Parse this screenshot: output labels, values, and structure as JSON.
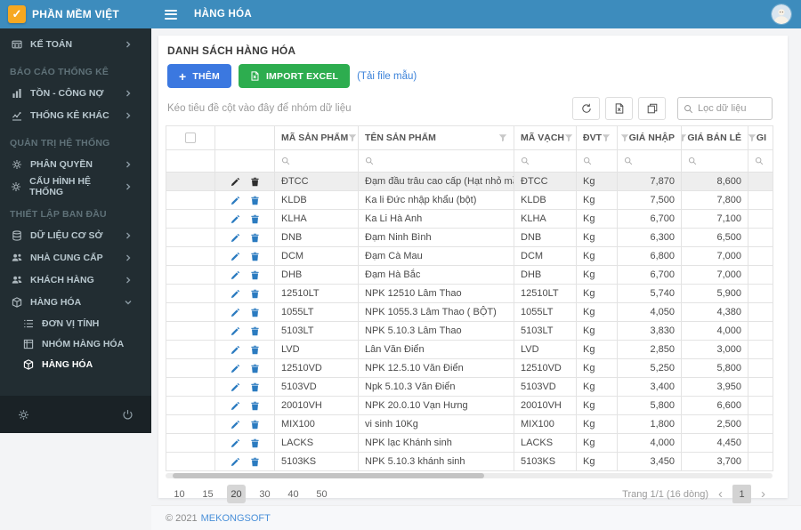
{
  "app": {
    "brand": "PHẦN MỀM VIỆT",
    "topbar_title": "HÀNG HÓA",
    "footer_copyright": "© 2021",
    "footer_brand": "MEKONGSOFT"
  },
  "colors": {
    "topbar_blue": "#3d8cbd",
    "sidebar_dark": "#222d32",
    "logo_orange": "#f6a821",
    "add_button_blue": "#3b78e0",
    "import_button_green": "#2dad4f",
    "action_icon_blue": "#2b7bc0"
  },
  "sidebar": {
    "items": [
      {
        "type": "item",
        "name": "ke-toan",
        "label": "KẾ TOÁN",
        "icon": "accounting-icon",
        "chevron": "right"
      },
      {
        "type": "section",
        "name": "bao-cao-thong-ke",
        "label": "BÁO CÁO THỐNG KÊ"
      },
      {
        "type": "item",
        "name": "ton-cong-no",
        "label": "TỒN - CÔNG NỢ",
        "icon": "bar-chart-icon",
        "chevron": "right"
      },
      {
        "type": "item",
        "name": "thong-ke-khac",
        "label": "THỐNG KÊ KHÁC",
        "icon": "line-chart-icon",
        "chevron": "right"
      },
      {
        "type": "section",
        "name": "quan-tri-he-thong",
        "label": "QUẢN TRỊ HỆ THỐNG"
      },
      {
        "type": "item",
        "name": "phan-quyen",
        "label": "PHÂN QUYỀN",
        "icon": "gears-icon",
        "chevron": "right"
      },
      {
        "type": "item",
        "name": "cau-hinh-he-thong",
        "label": "CẤU HÌNH HỆ THỐNG",
        "icon": "gear-icon",
        "chevron": "right"
      },
      {
        "type": "section",
        "name": "thiet-lap-ban-dau",
        "label": "THIẾT LẬP BAN ĐẦU"
      },
      {
        "type": "item",
        "name": "du-lieu-co-so",
        "label": "DỮ LIỆU CƠ SỞ",
        "icon": "database-icon",
        "chevron": "right"
      },
      {
        "type": "item",
        "name": "nha-cung-cap",
        "label": "NHÀ CUNG CẤP",
        "icon": "users-icon",
        "chevron": "right"
      },
      {
        "type": "item",
        "name": "khach-hang",
        "label": "KHÁCH HÀNG",
        "icon": "users-icon",
        "chevron": "right"
      },
      {
        "type": "item",
        "name": "hang-hoa",
        "label": "HÀNG HÓA",
        "icon": "box-icon",
        "chevron": "down"
      },
      {
        "type": "subitem",
        "name": "don-vi-tinh",
        "label": "ĐƠN VỊ TÍNH",
        "icon": "list-icon"
      },
      {
        "type": "subitem",
        "name": "nhom-hang-hoa",
        "label": "NHÓM HÀNG HÓA",
        "icon": "group-icon"
      },
      {
        "type": "subitem",
        "name": "hang-hoa-active",
        "label": "HÀNG HÓA",
        "icon": "box-icon",
        "active": true
      }
    ]
  },
  "page": {
    "heading": "DANH SÁCH HÀNG HÓA",
    "add_button": "THÊM",
    "import_button": "IMPORT EXCEL",
    "template_link": "(Tải file mẫu)",
    "group_hint": "Kéo tiêu đề cột vào đây để nhóm dữ liệu",
    "search_placeholder": "Lọc dữ liệu"
  },
  "table": {
    "columns": [
      {
        "key": "select",
        "label": "",
        "type": "checkbox"
      },
      {
        "key": "actions",
        "label": "",
        "type": "actions"
      },
      {
        "key": "code",
        "label": "MÃ SẢN PHẨM",
        "filter": true
      },
      {
        "key": "name",
        "label": "TÊN SẢN PHẨM",
        "filter": true
      },
      {
        "key": "barcode",
        "label": "MÃ VẠCH",
        "filter": true
      },
      {
        "key": "unit",
        "label": "ĐVT",
        "filter": true
      },
      {
        "key": "buy",
        "label": "GIÁ NHẬP",
        "filter": true,
        "align": "right"
      },
      {
        "key": "retail",
        "label": "GIÁ BÁN LẺ",
        "filter": true,
        "align": "right"
      },
      {
        "key": "cut",
        "label": "GI",
        "filter": true,
        "align": "right"
      }
    ],
    "rows": [
      {
        "selected": true,
        "cells": [
          "ĐTCC",
          "Đạm đầu trâu cao cấp (Hạt nhỏ mầu xanh)",
          "ĐTCC",
          "Kg",
          "7,870",
          "8,600",
          ""
        ]
      },
      {
        "selected": false,
        "cells": [
          "KLDB",
          "Ka li Đức nhập khẩu (bột)",
          "KLDB",
          "Kg",
          "7,500",
          "7,800",
          ""
        ]
      },
      {
        "selected": false,
        "cells": [
          "KLHA",
          "Ka Li Hà Anh",
          "KLHA",
          "Kg",
          "6,700",
          "7,100",
          ""
        ]
      },
      {
        "selected": false,
        "cells": [
          "DNB",
          "Đạm Ninh Bình",
          "DNB",
          "Kg",
          "6,300",
          "6,500",
          ""
        ]
      },
      {
        "selected": false,
        "cells": [
          "DCM",
          "Đạm Cà Mau",
          "DCM",
          "Kg",
          "6,800",
          "7,000",
          ""
        ]
      },
      {
        "selected": false,
        "cells": [
          "DHB",
          "Đạm Hà Bắc",
          "DHB",
          "Kg",
          "6,700",
          "7,000",
          ""
        ]
      },
      {
        "selected": false,
        "cells": [
          "12510LT",
          "NPK 12510 Lâm Thao",
          "12510LT",
          "Kg",
          "5,740",
          "5,900",
          ""
        ]
      },
      {
        "selected": false,
        "cells": [
          "1055LT",
          "NPK 1055.3 Lâm Thao ( BỘT)",
          "1055LT",
          "Kg",
          "4,050",
          "4,380",
          ""
        ]
      },
      {
        "selected": false,
        "cells": [
          "5103LT",
          "NPK 5.10.3 Lâm Thao",
          "5103LT",
          "Kg",
          "3,830",
          "4,000",
          ""
        ]
      },
      {
        "selected": false,
        "cells": [
          "LVD",
          "Lân Văn Điển",
          "LVD",
          "Kg",
          "2,850",
          "3,000",
          ""
        ]
      },
      {
        "selected": false,
        "cells": [
          "12510VD",
          "NPK 12.5.10 Văn Điển",
          "12510VD",
          "Kg",
          "5,250",
          "5,800",
          ""
        ]
      },
      {
        "selected": false,
        "cells": [
          "5103VD",
          "Npk 5.10.3 Văn Điển",
          "5103VD",
          "Kg",
          "3,400",
          "3,950",
          ""
        ]
      },
      {
        "selected": false,
        "cells": [
          "20010VH",
          "NPK 20.0.10 Vạn Hưng",
          "20010VH",
          "Kg",
          "5,800",
          "6,600",
          ""
        ]
      },
      {
        "selected": false,
        "cells": [
          "MIX100",
          "vi sinh 10Kg",
          "MIX100",
          "Kg",
          "1,800",
          "2,500",
          ""
        ]
      },
      {
        "selected": false,
        "cells": [
          "LACKS",
          "NPK lạc Khánh sinh",
          "LACKS",
          "Kg",
          "4,000",
          "4,450",
          ""
        ]
      },
      {
        "selected": false,
        "cells": [
          "5103KS",
          "NPK 5.10.3 khánh sinh",
          "5103KS",
          "Kg",
          "3,450",
          "3,700",
          ""
        ]
      }
    ]
  },
  "pager": {
    "sizes": [
      "10",
      "15",
      "20",
      "30",
      "40",
      "50"
    ],
    "active_size": "20",
    "info": "Trang 1/1 (16 dòng)",
    "current_page": "1"
  }
}
